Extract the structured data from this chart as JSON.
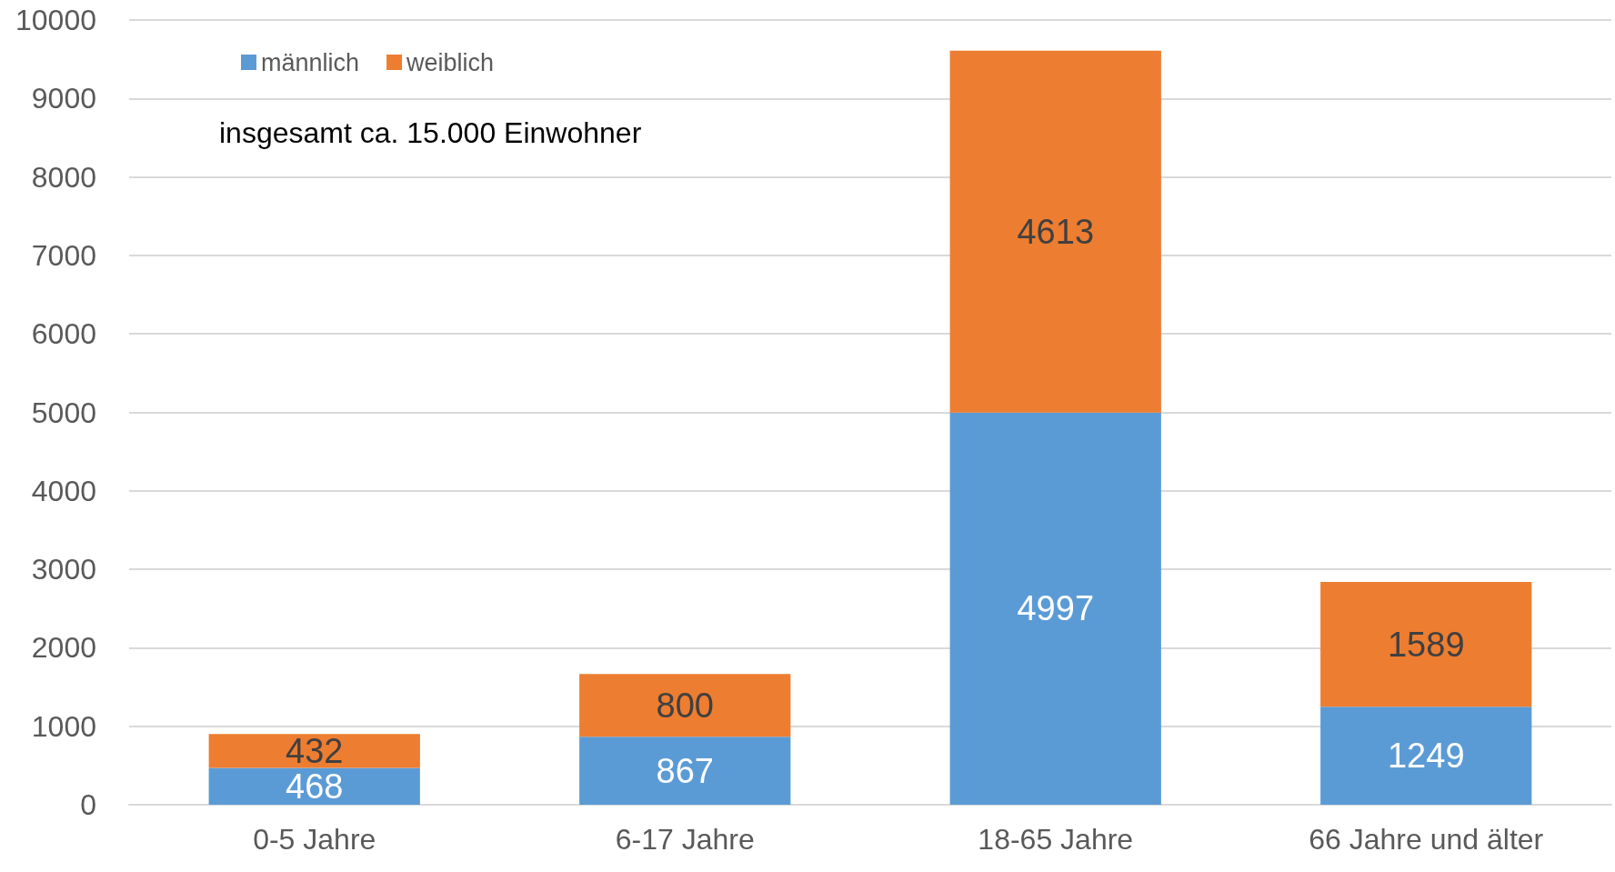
{
  "chart_data": {
    "type": "bar",
    "stacked": true,
    "categories": [
      "0-5 Jahre",
      "6-17 Jahre",
      "18-65 Jahre",
      "66 Jahre und älter"
    ],
    "series": [
      {
        "name": "männlich",
        "color": "#5b9bd5",
        "values": [
          468,
          867,
          4997,
          1249
        ]
      },
      {
        "name": "weiblich",
        "color": "#ed7d31",
        "values": [
          432,
          800,
          4613,
          1589
        ]
      }
    ],
    "ylim": [
      0,
      10000
    ],
    "yticks": [
      0,
      1000,
      2000,
      3000,
      4000,
      5000,
      6000,
      7000,
      8000,
      9000,
      10000
    ],
    "grid": "y",
    "legend": "top left",
    "data_labels": true,
    "annotations": [
      "insgesamt ca. 15.000 Einwohner"
    ]
  }
}
